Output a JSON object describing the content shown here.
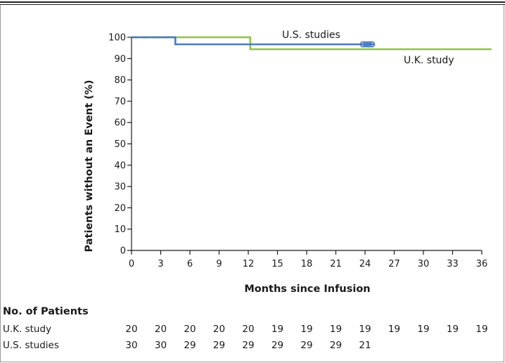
{
  "chart_data": {
    "type": "line",
    "xlabel": "Months since Infusion",
    "ylabel": "Patients without an Event (%)",
    "xlim": [
      0,
      36
    ],
    "ylim": [
      0,
      100
    ],
    "x_ticks": [
      0,
      3,
      6,
      9,
      12,
      15,
      18,
      21,
      24,
      27,
      30,
      33,
      36
    ],
    "y_ticks": [
      0,
      10,
      20,
      30,
      40,
      50,
      60,
      70,
      80,
      90,
      100
    ],
    "colors": {
      "uk": "#8dc63f",
      "us": "#4a7ac2"
    },
    "series": [
      {
        "name": "U.K. study",
        "key": "uk",
        "step_x": [
          0,
          12.2,
          12.2,
          37
        ],
        "step_y": [
          100,
          100,
          94.4,
          94.4
        ],
        "censor_x": []
      },
      {
        "name": "U.S. studies",
        "key": "us",
        "step_x": [
          0,
          4.5,
          4.5,
          24.9
        ],
        "step_y": [
          100,
          100,
          96.7,
          96.7
        ],
        "censor_x": [
          23.8,
          24.1,
          24.4,
          24.7
        ]
      }
    ],
    "risk_table": {
      "title": "No. of Patients",
      "rows": [
        {
          "name": "U.K. study",
          "values": [
            "20",
            "20",
            "20",
            "20",
            "20",
            "19",
            "19",
            "19",
            "19",
            "19",
            "19",
            "19",
            "19"
          ]
        },
        {
          "name": "U.S. studies",
          "values": [
            "30",
            "30",
            "29",
            "29",
            "29",
            "29",
            "29",
            "29",
            "21"
          ]
        }
      ]
    }
  }
}
